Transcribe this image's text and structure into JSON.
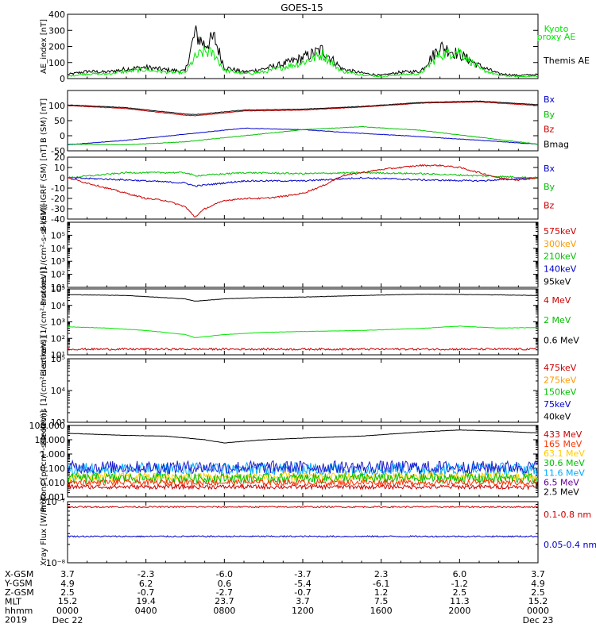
{
  "title": "GOES-15",
  "chart_data": [
    {
      "type": "line",
      "ylabel": "AE_index [nT]",
      "ylim": [
        0,
        400
      ],
      "yticks": [
        {
          "v": 0,
          "l": "0"
        },
        {
          "v": 100,
          "l": "100"
        },
        {
          "v": 200,
          "l": "200"
        },
        {
          "v": 300,
          "l": "300"
        },
        {
          "v": 400,
          "l": "400"
        }
      ],
      "legend": [
        {
          "text": "Kyoto",
          "color": "#00e600"
        },
        {
          "text": "proxy AE",
          "color": "#00e600"
        },
        {
          "text": "Themis AE",
          "color": "#000000"
        }
      ],
      "series": [
        {
          "name": "Themis AE",
          "color": "#000000",
          "x": [
            0,
            1,
            2,
            3,
            4,
            5,
            6,
            6.5,
            7,
            7.5,
            8,
            9,
            10,
            11,
            12,
            13,
            14,
            15,
            16,
            17,
            18,
            19,
            20,
            21,
            22,
            23,
            24
          ],
          "y": [
            25,
            45,
            40,
            60,
            70,
            55,
            45,
            280,
            210,
            250,
            70,
            40,
            60,
            90,
            130,
            180,
            60,
            35,
            20,
            40,
            45,
            200,
            150,
            80,
            30,
            20,
            25
          ]
        },
        {
          "name": "Kyoto proxy AE",
          "color": "#00e600",
          "x": [
            0,
            1,
            2,
            3,
            4,
            5,
            6,
            6.5,
            7,
            7.5,
            8,
            9,
            10,
            11,
            12,
            13,
            14,
            15,
            16,
            17,
            18,
            19,
            20,
            21,
            22,
            23,
            24
          ],
          "y": [
            15,
            30,
            28,
            45,
            55,
            40,
            35,
            130,
            170,
            150,
            50,
            30,
            40,
            70,
            100,
            150,
            45,
            25,
            12,
            25,
            30,
            150,
            170,
            60,
            20,
            12,
            15
          ]
        }
      ]
    },
    {
      "type": "line",
      "ylabel": "B (SM) [nT]",
      "ylim": [
        -50,
        150
      ],
      "yticks": [
        {
          "v": -50,
          "l": "-50"
        },
        {
          "v": 0,
          "l": "0"
        },
        {
          "v": 50,
          "l": "50"
        },
        {
          "v": 100,
          "l": "100"
        }
      ],
      "legend": [
        {
          "text": "Bx",
          "color": "#0000cc"
        },
        {
          "text": "By",
          "color": "#00c000"
        },
        {
          "text": "Bz",
          "color": "#cc0000"
        },
        {
          "text": "Bmag",
          "color": "#000000"
        }
      ],
      "series": [
        {
          "name": "Bx",
          "color": "#0000cc",
          "x": [
            0,
            3,
            6,
            9,
            12,
            15,
            18,
            21,
            24
          ],
          "y": [
            -30,
            -15,
            5,
            25,
            20,
            8,
            -3,
            -15,
            -28
          ]
        },
        {
          "name": "By",
          "color": "#00c000",
          "x": [
            0,
            3,
            6,
            9,
            12,
            15,
            18,
            21,
            24
          ],
          "y": [
            -28,
            -30,
            -20,
            0,
            20,
            30,
            18,
            -5,
            -28
          ]
        },
        {
          "name": "Bz",
          "color": "#cc0000",
          "x": [
            0,
            3,
            6,
            6.5,
            9,
            12,
            15,
            18,
            21,
            24
          ],
          "y": [
            100,
            90,
            68,
            66,
            82,
            85,
            95,
            108,
            112,
            100
          ]
        },
        {
          "name": "Bmag",
          "color": "#000000",
          "x": [
            0,
            3,
            6,
            6.5,
            9,
            12,
            15,
            18,
            21,
            24
          ],
          "y": [
            102,
            93,
            72,
            70,
            85,
            88,
            97,
            110,
            115,
            103
          ]
        }
      ]
    },
    {
      "type": "line",
      "ylabel": "B (SM)-IGRF (SM) [nT]",
      "ylim": [
        -40,
        20
      ],
      "yticks": [
        {
          "v": -40,
          "l": "-40"
        },
        {
          "v": -30,
          "l": "-30"
        },
        {
          "v": -20,
          "l": "-20"
        },
        {
          "v": -10,
          "l": "-10"
        },
        {
          "v": 0,
          "l": "0"
        },
        {
          "v": 10,
          "l": "10"
        },
        {
          "v": 20,
          "l": "20"
        }
      ],
      "legend": [
        {
          "text": "Bx",
          "color": "#0000cc"
        },
        {
          "text": "By",
          "color": "#00c000"
        },
        {
          "text": "Bz",
          "color": "#cc0000"
        }
      ],
      "series": [
        {
          "name": "Bx",
          "color": "#0000cc",
          "x": [
            0,
            3,
            6,
            6.5,
            9,
            12,
            15,
            18,
            21,
            24
          ],
          "y": [
            0,
            -2,
            -5,
            -8,
            -3,
            -3,
            0,
            -2,
            -3,
            0
          ]
        },
        {
          "name": "By",
          "color": "#00c000",
          "x": [
            0,
            3,
            6,
            6.5,
            9,
            12,
            15,
            18,
            21,
            24
          ],
          "y": [
            0,
            5,
            5,
            2,
            5,
            4,
            5,
            4,
            2,
            0
          ]
        },
        {
          "name": "Bz",
          "color": "#cc0000",
          "x": [
            0,
            1,
            2,
            3,
            4,
            5,
            6,
            6.5,
            7,
            8,
            9,
            10,
            11,
            12,
            13,
            14,
            15,
            16,
            17,
            18,
            19,
            20,
            21,
            22,
            23,
            24
          ],
          "y": [
            0,
            -5,
            -10,
            -15,
            -20,
            -22,
            -28,
            -38,
            -30,
            -22,
            -20,
            -20,
            -18,
            -15,
            -8,
            2,
            5,
            8,
            10,
            12,
            12,
            10,
            5,
            0,
            -2,
            0
          ]
        }
      ]
    },
    {
      "type": "line",
      "ylabel": "Protons [1/(cm²-s-sr-keV)]",
      "ylim": [
        10,
        1000000
      ],
      "log": true,
      "yticks": [
        {
          "v": 10,
          "l": "10¹"
        },
        {
          "v": 100,
          "l": "10²"
        },
        {
          "v": 1000,
          "l": "10³"
        },
        {
          "v": 10000,
          "l": "10⁴"
        },
        {
          "v": 100000,
          "l": "10⁵"
        }
      ],
      "legend": [
        {
          "text": "575keV",
          "color": "#cc0000"
        },
        {
          "text": "300keV",
          "color": "#ff9900"
        },
        {
          "text": "210keV",
          "color": "#00c000"
        },
        {
          "text": "140keV",
          "color": "#0000cc"
        },
        {
          "text": "95keV",
          "color": "#000000"
        }
      ],
      "series": []
    },
    {
      "type": "line",
      "ylabel": "Electrons [1/(cm²-s-sr-keV)]",
      "ylim": [
        10,
        100000
      ],
      "log": true,
      "yticks": [
        {
          "v": 10,
          "l": "10¹"
        },
        {
          "v": 100,
          "l": "10²"
        },
        {
          "v": 1000,
          "l": "10³"
        },
        {
          "v": 10000,
          "l": "10⁴"
        },
        {
          "v": 100000,
          "l": "10⁵"
        }
      ],
      "legend": [
        {
          "text": "4 MeV",
          "color": "#cc0000"
        },
        {
          "text": "2 MeV",
          "color": "#00c000"
        },
        {
          "text": "0.6 MeV",
          "color": "#000000"
        }
      ],
      "series": [
        {
          "name": "0.6 MeV",
          "color": "#000000",
          "x": [
            0,
            3,
            6,
            6.5,
            8,
            10,
            12,
            15,
            18,
            21,
            24
          ],
          "y": [
            45000,
            40000,
            25000,
            18000,
            25000,
            30000,
            32000,
            40000,
            48000,
            45000,
            40000
          ]
        },
        {
          "name": "2 MeV",
          "color": "#00e600",
          "x": [
            0,
            2,
            4,
            6,
            6.5,
            8,
            10,
            12,
            15,
            18,
            20,
            22,
            24
          ],
          "y": [
            500,
            420,
            300,
            170,
            110,
            170,
            230,
            260,
            300,
            400,
            550,
            420,
            450
          ]
        },
        {
          "name": "4 MeV",
          "color": "#cc0000",
          "x": [
            0,
            24
          ],
          "y": [
            22,
            22
          ],
          "noise": 0.06
        }
      ]
    },
    {
      "type": "line",
      "ylabel": "Electrons [1/(cm²-s-sr-keV)]",
      "ylim": [
        1000,
        100000
      ],
      "log": true,
      "yticks": [
        {
          "v": 1000,
          "l": "10³"
        },
        {
          "v": 10000,
          "l": "10⁴"
        },
        {
          "v": 100000,
          "l": "10⁵"
        }
      ],
      "legend": [
        {
          "text": "475keV",
          "color": "#cc0000"
        },
        {
          "text": "275keV",
          "color": "#ff9900"
        },
        {
          "text": "150keV",
          "color": "#00c000"
        },
        {
          "text": "75keV",
          "color": "#0000cc"
        },
        {
          "text": "40keV",
          "color": "#000000"
        }
      ],
      "series": []
    },
    {
      "type": "line",
      "ylabel": "Protons [p/(cm²-s-sr-keV)]",
      "ylim": [
        0.001,
        100
      ],
      "log": true,
      "yticks": [
        {
          "v": 0.001,
          "l": "0.001"
        },
        {
          "v": 0.01,
          "l": "0.010"
        },
        {
          "v": 0.1,
          "l": "0.100"
        },
        {
          "v": 1,
          "l": "1.000"
        },
        {
          "v": 10,
          "l": "10.000"
        },
        {
          "v": 100,
          "l": "100.000"
        }
      ],
      "legend": [
        {
          "text": "433 MeV",
          "color": "#cc0000"
        },
        {
          "text": "165 MeV",
          "color": "#ff3300"
        },
        {
          "text": "63.1 MeV",
          "color": "#ffcc00"
        },
        {
          "text": "30.6 MeV",
          "color": "#00c000"
        },
        {
          "text": "11.6 MeV",
          "color": "#00aaff"
        },
        {
          "text": "6.5 MeV",
          "color": "#660099"
        },
        {
          "text": "2.5 MeV",
          "color": "#000000"
        }
      ],
      "series": [
        {
          "name": "2.5 MeV",
          "color": "#000000",
          "x": [
            0,
            3,
            5,
            7,
            8,
            10,
            12,
            15,
            18,
            20,
            22,
            24
          ],
          "y": [
            28,
            20,
            18,
            10,
            6,
            10,
            13,
            18,
            35,
            48,
            40,
            30
          ]
        },
        {
          "name": "11.6 MeV",
          "color": "#00aaff",
          "x": [
            0,
            24
          ],
          "y": [
            0.09,
            0.09
          ],
          "noise": 0.45
        },
        {
          "name": "6.5 MeV",
          "color": "#2020cc",
          "x": [
            0,
            24
          ],
          "y": [
            0.12,
            0.12
          ],
          "noise": 0.45
        },
        {
          "name": "63.1 MeV",
          "color": "#ffcc00",
          "x": [
            0,
            24
          ],
          "y": [
            0.025,
            0.025
          ],
          "noise": 0.3
        },
        {
          "name": "30.6 MeV",
          "color": "#00c000",
          "x": [
            0,
            24
          ],
          "y": [
            0.02,
            0.02
          ],
          "noise": 0.35
        },
        {
          "name": "165 MeV",
          "color": "#ff3300",
          "x": [
            0,
            24
          ],
          "y": [
            0.01,
            0.01
          ],
          "noise": 0.2
        },
        {
          "name": "433 MeV",
          "color": "#cc0000",
          "x": [
            0,
            24
          ],
          "y": [
            0.005,
            0.005
          ],
          "noise": 0.15
        }
      ]
    },
    {
      "type": "line",
      "ylabel": "Xray Flux [W/m²]",
      "ylim": [
        1e-08,
        1e-07
      ],
      "log": true,
      "yticks": [
        {
          "v": 1e-08,
          "l": "10⁻⁸"
        },
        {
          "v": 1e-07,
          "l": "10⁻⁷"
        }
      ],
      "legend": [
        {
          "text": "0.1-0.8 nm",
          "color": "#cc0000"
        },
        {
          "text": "0.05-0.4 nm",
          "color": "#0000cc"
        }
      ],
      "series": [
        {
          "name": "0.1-0.8 nm",
          "color": "#cc0000",
          "x": [
            0,
            24
          ],
          "y": [
            8.2e-08,
            8.2e-08
          ],
          "noise": 0.012
        },
        {
          "name": "0.05-0.4 nm",
          "color": "#0000cc",
          "x": [
            0,
            24
          ],
          "y": [
            2.7e-08,
            2.7e-08
          ],
          "noise": 0.012
        }
      ]
    }
  ],
  "xaxis": {
    "hhmm": [
      "0000",
      "0400",
      "0800",
      "1200",
      "1600",
      "2000",
      "0000"
    ],
    "tick_hours": [
      0,
      4,
      8,
      12,
      16,
      20,
      24
    ],
    "row_labels": [
      "X-GSM",
      "Y-GSM",
      "Z-GSM",
      "MLT",
      "hhmm",
      "2019"
    ],
    "x_gsm": [
      "3.7",
      "-2.3",
      "-6.0",
      "-3.7",
      "2.3",
      "6.0",
      "3.7"
    ],
    "y_gsm": [
      "4.9",
      "6.2",
      "0.6",
      "-5.4",
      "-6.1",
      "-1.2",
      "4.9"
    ],
    "z_gsm": [
      "2.5",
      "-0.7",
      "-2.7",
      "-0.7",
      "1.2",
      "2.5",
      "2.5"
    ],
    "mlt": [
      "15.2",
      "19.4",
      "23.7",
      "3.7",
      "7.5",
      "11.3",
      "15.2"
    ],
    "date_start": "Dec 22",
    "date_end": "Dec 23"
  }
}
